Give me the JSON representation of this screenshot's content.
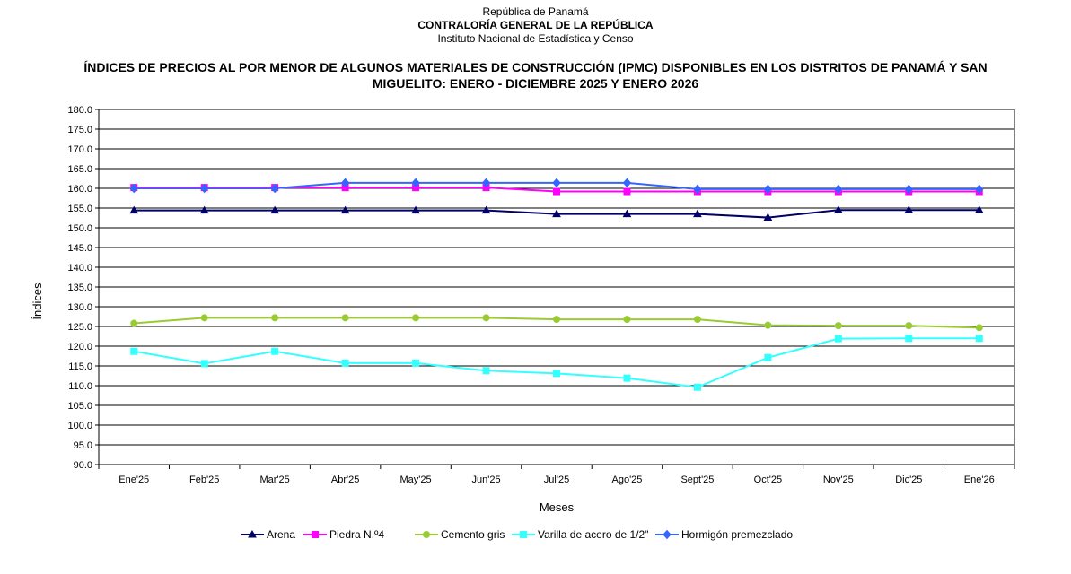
{
  "header": {
    "line1": "República de Panamá",
    "line2": "CONTRALORÍA GENERAL DE LA REPÚBLICA",
    "line3": "Instituto Nacional de Estadística y Censo"
  },
  "chart_data": {
    "type": "line",
    "title": "ÍNDICES DE PRECIOS AL POR MENOR DE ALGUNOS MATERIALES DE CONSTRUCCIÓN (IPMC) DISPONIBLES EN LOS DISTRITOS DE PANAMÁ Y SAN MIGUELITO: ENERO - DICIEMBRE 2025 Y ENERO 2026",
    "xlabel": "Meses",
    "ylabel": "Índices",
    "ylim": [
      90,
      180
    ],
    "yticks": [
      "180.0",
      "175.0",
      "170.0",
      "165.0",
      "160.0",
      "155.0",
      "150.0",
      "145.0",
      "140.0",
      "135.0",
      "130.0",
      "125.0",
      "120.0",
      "115.0",
      "110.0",
      "105.0",
      "100.0",
      "95.0",
      "90.0"
    ],
    "categories": [
      "Ene'25",
      "Feb'25",
      "Mar'25",
      "Abr'25",
      "May'25",
      "Jun'25",
      "Jul'25",
      "Ago'25",
      "Sept'25",
      "Oct'25",
      "Nov'25",
      "Dic'25",
      "Ene'26"
    ],
    "grid": true,
    "legend_position": "bottom",
    "series": [
      {
        "name": "Arena",
        "color": "#000066",
        "marker": "triangle",
        "values": [
          154.4,
          154.4,
          154.4,
          154.4,
          154.4,
          154.4,
          153.5,
          153.5,
          153.5,
          152.6,
          154.5,
          154.5,
          154.5
        ]
      },
      {
        "name": "Piedra N.º4",
        "color": "#FF00FF",
        "marker": "square",
        "values": [
          160.2,
          160.2,
          160.2,
          160.2,
          160.2,
          160.2,
          159.2,
          159.2,
          159.2,
          159.2,
          159.2,
          159.2,
          159.2
        ]
      },
      {
        "name": "Cemento gris",
        "color": "#99CC33",
        "marker": "circle",
        "values": [
          125.8,
          127.2,
          127.2,
          127.2,
          127.2,
          127.2,
          126.8,
          126.8,
          126.8,
          125.3,
          125.2,
          125.2,
          124.7
        ]
      },
      {
        "name": "Varilla de acero de 1/2\"",
        "color": "#33FFFF",
        "marker": "square",
        "values": [
          118.7,
          115.6,
          118.7,
          115.7,
          115.7,
          113.8,
          113.1,
          111.9,
          109.6,
          117.1,
          121.9,
          122.0,
          122.0
        ]
      },
      {
        "name": "Hormigón premezclado",
        "color": "#3366FF",
        "marker": "diamond",
        "values": [
          160.0,
          160.0,
          160.0,
          161.4,
          161.4,
          161.4,
          161.4,
          161.4,
          159.8,
          159.8,
          159.8,
          159.8,
          159.8
        ]
      }
    ]
  }
}
